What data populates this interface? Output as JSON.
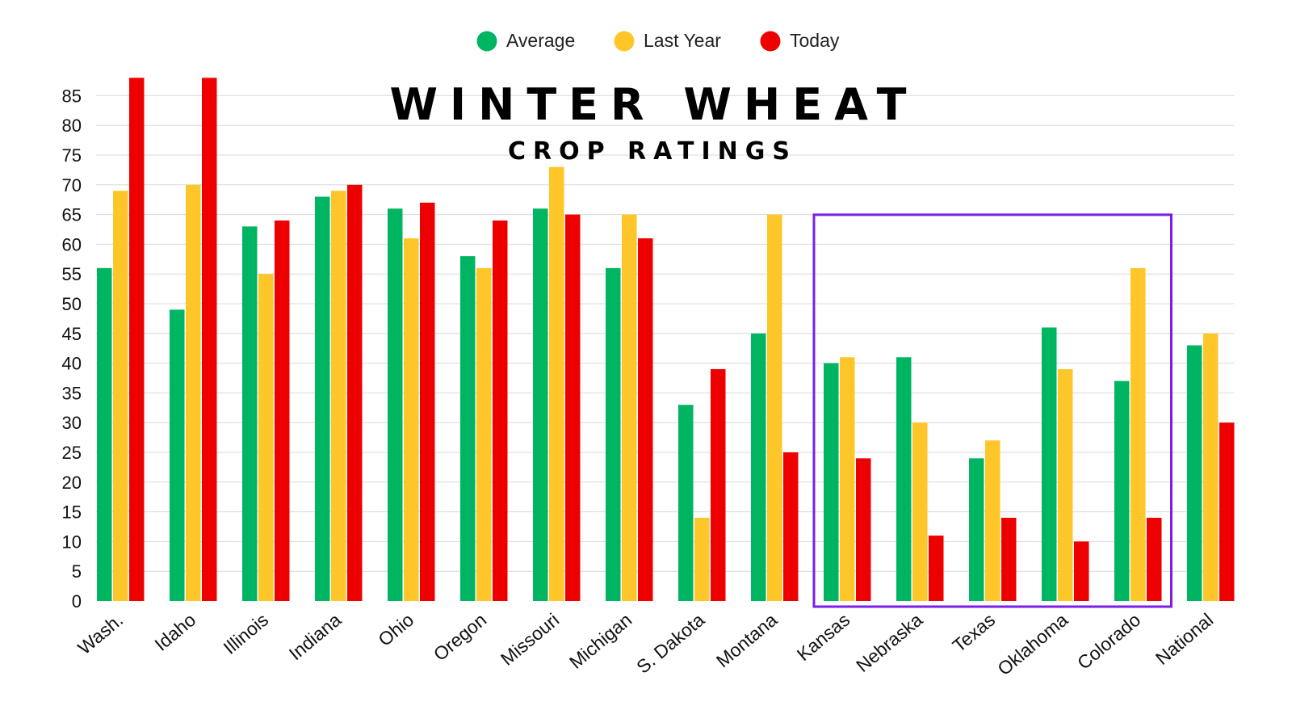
{
  "chart_data": {
    "type": "bar",
    "title": "WINTER WHEAT",
    "subtitle": "CROP RATINGS",
    "xlabel": "",
    "ylabel": "",
    "ylim": [
      0,
      88
    ],
    "yticks": [
      0,
      5,
      10,
      15,
      20,
      25,
      30,
      35,
      40,
      45,
      50,
      55,
      60,
      65,
      70,
      75,
      80,
      85
    ],
    "grid": true,
    "legend_position": "top-center",
    "categories": [
      "Wash.",
      "Idaho",
      "Illinois",
      "Indiana",
      "Ohio",
      "Oregon",
      "Missouri",
      "Michigan",
      "S. Dakota",
      "Montana",
      "Kansas",
      "Nebraska",
      "Texas",
      "Oklahoma",
      "Colorado",
      "National"
    ],
    "series": [
      {
        "name": "Average",
        "color": "#00b561",
        "values": [
          56,
          49,
          63,
          68,
          66,
          58,
          66,
          56,
          33,
          45,
          40,
          41,
          24,
          46,
          37,
          43
        ]
      },
      {
        "name": "Last Year",
        "color": "#ffc629",
        "values": [
          69,
          70,
          55,
          69,
          61,
          56,
          73,
          65,
          14,
          65,
          41,
          30,
          27,
          39,
          56,
          45
        ]
      },
      {
        "name": "Today",
        "color": "#ef0000",
        "values": [
          88,
          88,
          64,
          70,
          67,
          64,
          65,
          61,
          39,
          25,
          24,
          11,
          14,
          10,
          14,
          30
        ]
      }
    ],
    "highlight": {
      "from_category": "Kansas",
      "to_category": "Colorado",
      "color": "#7b1fe8"
    }
  }
}
